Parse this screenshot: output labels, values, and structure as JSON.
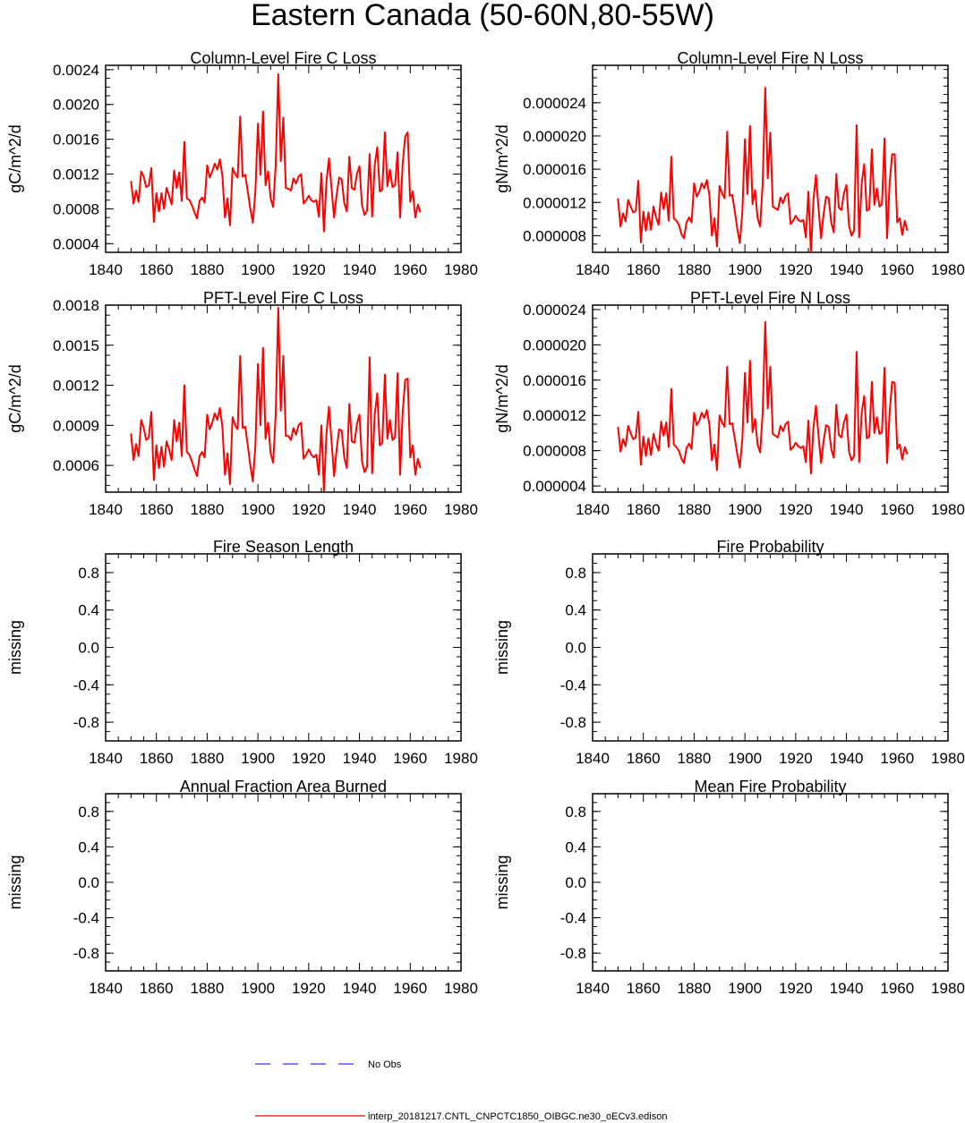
{
  "figure_title": "Eastern Canada (50-60N,80-55W)",
  "colors": {
    "series": "#ff0000",
    "obs": "#0000ff",
    "axis": "#000000"
  },
  "legend": {
    "obs_label": "No Obs",
    "model_label": "interp_20181217.CNTL_CNPCTC1850_OIBGC.ne30_oECv3.edison"
  },
  "chart_data": [
    {
      "type": "line",
      "title": "Column-Level Fire C Loss",
      "ylabel": "gC/m^2/d",
      "xlim": [
        1840,
        1980
      ],
      "ylim": [
        0.0003,
        0.00245
      ],
      "xticks": [
        "1840",
        "1860",
        "1880",
        "1900",
        "1920",
        "1940",
        "1960",
        "1980"
      ],
      "yticks": [
        0.0004,
        0.0008,
        0.0012,
        0.0016,
        0.002,
        0.0024
      ],
      "ytick_labels": [
        "0.0004",
        "0.0008",
        "0.0012",
        "0.0016",
        "0.0020",
        "0.0024"
      ],
      "series": [
        {
          "name": "model",
          "x_start": 1850,
          "values": [
            0.00112,
            0.00086,
            0.00101,
            0.00088,
            0.00123,
            0.00117,
            0.00105,
            0.00107,
            0.00127,
            0.00065,
            0.00098,
            0.00077,
            0.00098,
            0.0008,
            0.00104,
            0.00095,
            0.00085,
            0.00124,
            0.00104,
            0.00122,
            0.00089,
            0.00157,
            0.00092,
            0.0009,
            0.00084,
            0.00076,
            0.00069,
            0.00089,
            0.00093,
            0.00087,
            0.0013,
            0.00116,
            0.00123,
            0.00132,
            0.00125,
            0.00137,
            0.00118,
            0.0007,
            0.00092,
            0.00061,
            0.00127,
            0.0012,
            0.00116,
            0.00186,
            0.00117,
            0.00119,
            0.001,
            0.0008,
            0.00064,
            0.001,
            0.00178,
            0.00119,
            0.00192,
            0.00107,
            0.00123,
            0.00092,
            0.00082,
            0.0013,
            0.00235,
            0.00135,
            0.00185,
            0.00104,
            0.00103,
            0.00101,
            0.00115,
            0.00109,
            0.00117,
            0.0012,
            0.00086,
            0.0009,
            0.00095,
            0.0009,
            0.00088,
            0.0009,
            0.00071,
            0.00121,
            0.00054,
            0.00112,
            0.00138,
            0.00103,
            0.0007,
            0.00096,
            0.00116,
            0.00114,
            0.00087,
            0.00077,
            0.0014,
            0.00104,
            0.00102,
            0.0012,
            0.00129,
            0.00084,
            0.00073,
            0.00078,
            0.00143,
            0.00071,
            0.0013,
            0.00151,
            0.001,
            0.00102,
            0.00168,
            0.00106,
            0.00125,
            0.00105,
            0.00107,
            0.00145,
            0.0007,
            0.00131,
            0.00163,
            0.00168,
            0.00088,
            0.001,
            0.0007,
            0.00085,
            0.00076
          ]
        }
      ]
    },
    {
      "type": "line",
      "title": "Column-Level Fire N Loss",
      "ylabel": "gN/m^2/d",
      "xlim": [
        1840,
        1980
      ],
      "ylim": [
        6e-06,
        2.85e-05
      ],
      "xticks": [
        "1840",
        "1860",
        "1880",
        "1900",
        "1920",
        "1940",
        "1960",
        "1980"
      ],
      "yticks": [
        8e-06,
        1.2e-05,
        1.6e-05,
        2e-05,
        2.4e-05
      ],
      "ytick_labels": [
        "0.000008",
        "0.000012",
        "0.000016",
        "0.000020",
        "0.000024"
      ],
      "series": [
        {
          "name": "model",
          "x_start": 1850,
          "values": [
            1.25e-05,
            9.1e-06,
            1.07e-05,
            9.7e-06,
            1.23e-05,
            1.15e-05,
            1.08e-05,
            1.1e-05,
            1.46e-05,
            7.2e-06,
            1.09e-05,
            8.6e-06,
            1.08e-05,
            8.7e-06,
            1.15e-05,
            1.02e-05,
            9.3e-06,
            1.32e-05,
            1.12e-05,
            1.31e-05,
            9.8e-06,
            1.75e-05,
            1.01e-05,
            9.8e-06,
            9.3e-06,
            8.2e-06,
            7.7e-06,
            9.6e-06,
            1.02e-05,
            9.6e-06,
            1.43e-05,
            1.27e-05,
            1.33e-05,
            1.43e-05,
            1.37e-05,
            1.47e-05,
            1.29e-05,
            8e-06,
            1.01e-05,
            6.7e-06,
            1.4e-05,
            1.31e-05,
            1.25e-05,
            2.05e-05,
            1.28e-05,
            1.29e-05,
            1.1e-05,
            8.8e-06,
            7.1e-06,
            1.09e-05,
            1.96e-05,
            1.3e-05,
            2.12e-05,
            1.18e-05,
            1.35e-05,
            1.01e-05,
            9.1e-06,
            1.43e-05,
            2.58e-05,
            1.49e-05,
            2.04e-05,
            1.15e-05,
            1.13e-05,
            1.11e-05,
            1.26e-05,
            1.19e-05,
            1.28e-05,
            1.31e-05,
            9.4e-06,
            9.8e-06,
            1.04e-05,
            9.9e-06,
            9.7e-06,
            9.9e-06,
            7.8e-06,
            1.33e-05,
            5.9e-06,
            1.23e-05,
            1.53e-05,
            1.13e-05,
            7.7e-06,
            1.06e-05,
            1.27e-05,
            1.25e-05,
            9.6e-06,
            8.4e-06,
            1.54e-05,
            1.14e-05,
            1.11e-05,
            1.31e-05,
            1.41e-05,
            9.2e-06,
            8e-06,
            8.6e-06,
            2.13e-05,
            7.8e-06,
            1.43e-05,
            1.66e-05,
            1.1e-05,
            1.12e-05,
            1.84e-05,
            1.17e-05,
            1.37e-05,
            1.15e-05,
            1.18e-05,
            1.97e-05,
            7.7e-06,
            1.43e-05,
            1.78e-05,
            1.78e-05,
            9.6e-06,
            1.01e-05,
            8.1e-06,
            9.8e-06,
            8.6e-06
          ]
        }
      ]
    },
    {
      "type": "line",
      "title": "PFT-Level Fire C Loss",
      "ylabel": "gC/m^2/d",
      "xlim": [
        1840,
        1980
      ],
      "ylim": [
        0.0004,
        0.0018
      ],
      "xticks": [
        "1840",
        "1860",
        "1880",
        "1900",
        "1920",
        "1940",
        "1960",
        "1980"
      ],
      "yticks": [
        0.0006,
        0.0009,
        0.0012,
        0.0015,
        0.0018
      ],
      "ytick_labels": [
        "0.0006",
        "0.0009",
        "0.0012",
        "0.0015",
        "0.0018"
      ],
      "series": [
        {
          "name": "model",
          "x_start": 1850,
          "values": [
            0.00084,
            0.00064,
            0.00076,
            0.00067,
            0.00094,
            0.00088,
            0.00079,
            0.00081,
            0.001,
            0.00049,
            0.00075,
            0.00058,
            0.00074,
            0.00059,
            0.00078,
            0.00072,
            0.00064,
            0.00094,
            0.00078,
            0.00092,
            0.00067,
            0.0012,
            0.0007,
            0.00068,
            0.00063,
            0.00057,
            0.00052,
            0.00067,
            0.0007,
            0.00066,
            0.00098,
            0.00087,
            0.00092,
            0.00099,
            0.00094,
            0.00103,
            0.00089,
            0.00053,
            0.00069,
            0.00046,
            0.00096,
            0.0009,
            0.00087,
            0.00142,
            0.00088,
            0.00089,
            0.00075,
            0.0006,
            0.00048,
            0.00075,
            0.00136,
            0.0009,
            0.00148,
            0.0008,
            0.00092,
            0.00069,
            0.00062,
            0.00098,
            0.00178,
            0.00101,
            0.00142,
            0.00082,
            0.00082,
            0.00079,
            0.00088,
            0.00083,
            0.0009,
            0.00092,
            0.00065,
            0.00068,
            0.00072,
            0.00068,
            0.00066,
            0.00068,
            0.00053,
            0.0009,
            0.00041,
            0.00084,
            0.00104,
            0.00078,
            0.00052,
            0.00072,
            0.00087,
            0.00086,
            0.00066,
            0.00058,
            0.00106,
            0.00078,
            0.00077,
            0.00091,
            0.00098,
            0.00063,
            0.00055,
            0.00059,
            0.00141,
            0.00054,
            0.00098,
            0.00114,
            0.00075,
            0.00077,
            0.00128,
            0.0008,
            0.00094,
            0.00079,
            0.00081,
            0.00129,
            0.00053,
            0.00099,
            0.00124,
            0.00125,
            0.00066,
            0.00075,
            0.00053,
            0.00065,
            0.00058
          ]
        }
      ]
    },
    {
      "type": "line",
      "title": "PFT-Level Fire N Loss",
      "ylabel": "gN/m^2/d",
      "xlim": [
        1840,
        1980
      ],
      "ylim": [
        3.3e-06,
        2.45e-05
      ],
      "xticks": [
        "1840",
        "1860",
        "1880",
        "1900",
        "1920",
        "1940",
        "1960",
        "1980"
      ],
      "yticks": [
        4e-06,
        8e-06,
        1.2e-05,
        1.6e-05,
        2e-05,
        2.4e-05
      ],
      "ytick_labels": [
        "0.000004",
        "0.000008",
        "0.000012",
        "0.000016",
        "0.000020",
        "0.000024"
      ],
      "series": [
        {
          "name": "model",
          "x_start": 1850,
          "values": [
            1.07e-05,
            7.9e-06,
            9.3e-06,
            8.5e-06,
            1.08e-05,
            1e-05,
            9.3e-06,
            9.5e-06,
            1.24e-05,
            6.4e-06,
            9.6e-06,
            7.4e-06,
            9.4e-06,
            7.5e-06,
            9.9e-06,
            8.8e-06,
            8e-06,
            1.13e-05,
            9.7e-06,
            1.12e-05,
            8.4e-06,
            1.5e-05,
            8.7e-06,
            8.4e-06,
            8e-06,
            7.1e-06,
            6.6e-06,
            8.3e-06,
            8.8e-06,
            8.2e-06,
            1.23e-05,
            1.09e-05,
            1.14e-05,
            1.23e-05,
            1.17e-05,
            1.26e-05,
            1.1e-05,
            6.9e-06,
            8.7e-06,
            5.8e-06,
            1.2e-05,
            1.12e-05,
            1.07e-05,
            1.75e-05,
            1.1e-05,
            1.11e-05,
            9.4e-06,
            7.6e-06,
            6.1e-06,
            9.4e-06,
            1.68e-05,
            1.12e-05,
            1.82e-05,
            1.01e-05,
            1.16e-05,
            8.7e-06,
            7.8e-06,
            1.23e-05,
            2.26e-05,
            1.28e-05,
            1.75e-05,
            9.9e-06,
            9.7e-06,
            9.5e-06,
            1.08e-05,
            1.02e-05,
            1.1e-05,
            1.13e-05,
            8.1e-06,
            8.4e-06,
            8.9e-06,
            8.5e-06,
            8.3e-06,
            8.5e-06,
            6.7e-06,
            1.14e-05,
            5.4e-06,
            1.06e-05,
            1.31e-05,
            9.7e-06,
            6.6e-06,
            9.1e-06,
            1.09e-05,
            1.07e-05,
            8.2e-06,
            7.2e-06,
            1.32e-05,
            9.8e-06,
            9.5e-06,
            1.12e-05,
            1.21e-05,
            7.9e-06,
            6.9e-06,
            7.4e-06,
            1.92e-05,
            6.7e-06,
            1.23e-05,
            1.42e-05,
            9.4e-06,
            9.6e-06,
            1.58e-05,
            1e-05,
            1.18e-05,
            9.9e-06,
            1.01e-05,
            1.74e-05,
            6.6e-06,
            1.23e-05,
            1.58e-05,
            1.57e-05,
            8.2e-06,
            8.7e-06,
            7e-06,
            8.4e-06,
            7.6e-06
          ]
        }
      ]
    },
    {
      "type": "line",
      "title": "Fire Season Length",
      "ylabel": "missing",
      "xlim": [
        1840,
        1980
      ],
      "ylim": [
        -1,
        1
      ],
      "xticks": [
        "1840",
        "1860",
        "1880",
        "1900",
        "1920",
        "1940",
        "1960",
        "1980"
      ],
      "yticks": [
        -0.8,
        -0.4,
        0.0,
        0.4,
        0.8
      ],
      "ytick_labels": [
        "-0.8",
        "-0.4",
        "0.0",
        "0.4",
        "0.8"
      ],
      "series": []
    },
    {
      "type": "line",
      "title": "Fire Probability",
      "ylabel": "missing",
      "xlim": [
        1840,
        1980
      ],
      "ylim": [
        -1,
        1
      ],
      "xticks": [
        "1840",
        "1860",
        "1880",
        "1900",
        "1920",
        "1940",
        "1960",
        "1980"
      ],
      "yticks": [
        -0.8,
        -0.4,
        0.0,
        0.4,
        0.8
      ],
      "ytick_labels": [
        "-0.8",
        "-0.4",
        "0.0",
        "0.4",
        "0.8"
      ],
      "series": []
    },
    {
      "type": "line",
      "title": "Annual Fraction Area Burned",
      "ylabel": "missing",
      "xlim": [
        1840,
        1980
      ],
      "ylim": [
        -1,
        1
      ],
      "xticks": [
        "1840",
        "1860",
        "1880",
        "1900",
        "1920",
        "1940",
        "1960",
        "1980"
      ],
      "yticks": [
        -0.8,
        -0.4,
        0.0,
        0.4,
        0.8
      ],
      "ytick_labels": [
        "-0.8",
        "-0.4",
        "0.0",
        "0.4",
        "0.8"
      ],
      "series": []
    },
    {
      "type": "line",
      "title": "Mean Fire Probability",
      "ylabel": "missing",
      "xlim": [
        1840,
        1980
      ],
      "ylim": [
        -1,
        1
      ],
      "xticks": [
        "1840",
        "1860",
        "1880",
        "1900",
        "1920",
        "1940",
        "1960",
        "1980"
      ],
      "yticks": [
        -0.8,
        -0.4,
        0.0,
        0.4,
        0.8
      ],
      "ytick_labels": [
        "-0.8",
        "-0.4",
        "0.0",
        "0.4",
        "0.8"
      ],
      "series": []
    }
  ]
}
